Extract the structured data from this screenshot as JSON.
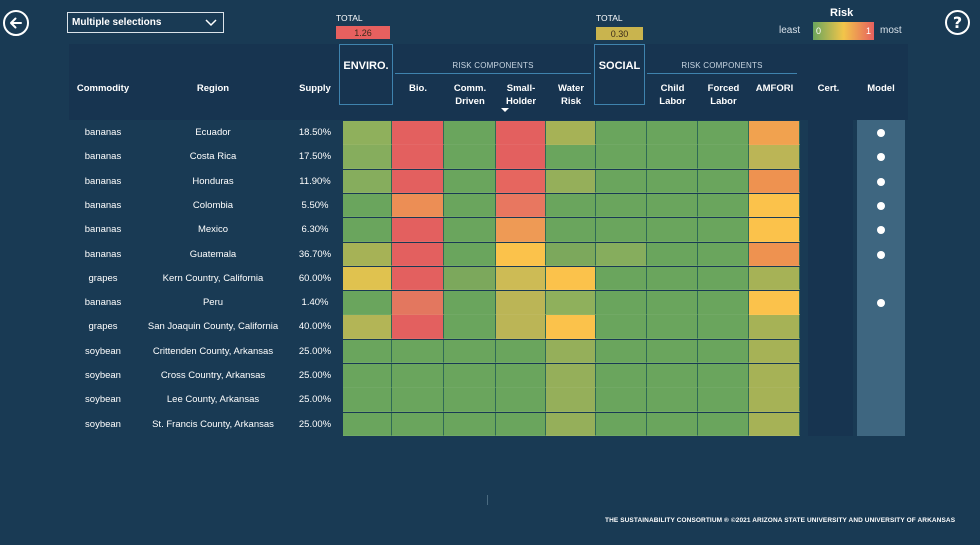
{
  "dropdown": {
    "value": "Multiple selections"
  },
  "totals": {
    "env": {
      "label": "TOTAL",
      "value": "1.26",
      "color": "#e6605f"
    },
    "social": {
      "label": "TOTAL",
      "value": "0.30",
      "color": "#c9b44e"
    }
  },
  "legend": {
    "title": "Risk",
    "least": "least",
    "most": "most",
    "min": "0",
    "max": "1"
  },
  "header": {
    "commodity": "Commodity",
    "region": "Region",
    "supply": "Supply",
    "enviro": "ENVIRO.",
    "social": "SOCIAL",
    "risk_components_env": "RISK COMPONENTS",
    "risk_components_social": "RISK COMPONENTS",
    "bio": "Bio.",
    "comm_driven_1": "Comm.",
    "comm_driven_2": "Driven",
    "smallholder_1": "Small-",
    "smallholder_2": "Holder",
    "water_1": "Water",
    "water_2": "Risk",
    "child_1": "Child",
    "child_2": "Labor",
    "forced_1": "Forced",
    "forced_2": "Labor",
    "amfori": "AMFORI",
    "cert": "Cert.",
    "model": "Model"
  },
  "rows": [
    {
      "commodity": "bananas",
      "region": "Ecuador",
      "supply": "18.50%",
      "model": true
    },
    {
      "commodity": "bananas",
      "region": "Costa Rica",
      "supply": "17.50%",
      "model": true
    },
    {
      "commodity": "bananas",
      "region": "Honduras",
      "supply": "11.90%",
      "model": true
    },
    {
      "commodity": "bananas",
      "region": "Colombia",
      "supply": "5.50%",
      "model": true
    },
    {
      "commodity": "bananas",
      "region": "Mexico",
      "supply": "6.30%",
      "model": true
    },
    {
      "commodity": "bananas",
      "region": "Guatemala",
      "supply": "36.70%",
      "model": true
    },
    {
      "commodity": "grapes",
      "region": "Kern Country, California",
      "supply": "60.00%",
      "model": false
    },
    {
      "commodity": "bananas",
      "region": "Peru",
      "supply": "1.40%",
      "model": true
    },
    {
      "commodity": "grapes",
      "region": "San Joaquin County, California",
      "supply": "40.00%",
      "model": false
    },
    {
      "commodity": "soybean",
      "region": "Crittenden County, Arkansas",
      "supply": "25.00%",
      "model": false
    },
    {
      "commodity": "soybean",
      "region": "Cross Country, Arkansas",
      "supply": "25.00%",
      "model": false
    },
    {
      "commodity": "soybean",
      "region": "Lee County, Arkansas",
      "supply": "25.00%",
      "model": false
    },
    {
      "commodity": "soybean",
      "region": "St. Francis County, Arkansas",
      "supply": "25.00%",
      "model": false
    }
  ],
  "heat_colors": [
    [
      "#8fb05c",
      "#e3605f",
      "#6aa55d",
      "#e3605f",
      "#a6b256",
      "#6aa55d",
      "#6aa55d",
      "#6aa55d",
      "#f1a24f"
    ],
    [
      "#86ad5d",
      "#e3605f",
      "#6aa55d",
      "#e3605f",
      "#6aa55d",
      "#6aa55d",
      "#6aa55d",
      "#6aa55d",
      "#bbb556"
    ],
    [
      "#86ad5d",
      "#e3605f",
      "#6aa55d",
      "#e6665f",
      "#95af5a",
      "#6aa55d",
      "#6aa55d",
      "#6aa55d",
      "#ee9250"
    ],
    [
      "#6aa55d",
      "#ec8e55",
      "#6aa55d",
      "#e87760",
      "#6aa55d",
      "#6aa55d",
      "#6aa55d",
      "#6aa55d",
      "#fbc24b"
    ],
    [
      "#6aa55d",
      "#e3605f",
      "#6aa55d",
      "#ee9a55",
      "#6aa55d",
      "#6aa55d",
      "#6aa55d",
      "#6aa55d",
      "#fbc24b"
    ],
    [
      "#a6b256",
      "#e3605f",
      "#6aa55d",
      "#fbc24b",
      "#7ca85c",
      "#86ad5d",
      "#6aa55d",
      "#6aa55d",
      "#ee9250"
    ],
    [
      "#e0c24f",
      "#e3605f",
      "#7ca85c",
      "#cdbb55",
      "#fbc24b",
      "#6aa55d",
      "#6aa55d",
      "#6aa55d",
      "#a6b256"
    ],
    [
      "#6aa55d",
      "#e3775f",
      "#6aa55d",
      "#bbb556",
      "#8fb05c",
      "#6aa55d",
      "#6aa55d",
      "#6aa55d",
      "#fbc24b"
    ],
    [
      "#b3b556",
      "#e3605f",
      "#6aa55d",
      "#bbb556",
      "#fbc24b",
      "#6aa55d",
      "#6aa55d",
      "#6aa55d",
      "#a6b256"
    ],
    [
      "#6aa55d",
      "#6aa55d",
      "#6aa55d",
      "#6aa55d",
      "#95af5a",
      "#6aa55d",
      "#6aa55d",
      "#6aa55d",
      "#a6b256"
    ],
    [
      "#6aa55d",
      "#6aa55d",
      "#6aa55d",
      "#6aa55d",
      "#95af5a",
      "#6aa55d",
      "#6aa55d",
      "#6aa55d",
      "#a6b256"
    ],
    [
      "#6aa55d",
      "#6aa55d",
      "#6aa55d",
      "#6aa55d",
      "#95af5a",
      "#6aa55d",
      "#6aa55d",
      "#6aa55d",
      "#a6b256"
    ],
    [
      "#6aa55d",
      "#6aa55d",
      "#6aa55d",
      "#6aa55d",
      "#95af5a",
      "#6aa55d",
      "#6aa55d",
      "#6aa55d",
      "#a6b256"
    ]
  ],
  "footer": "THE SUSTAINABILITY CONSORTIUM ®  ©2021 ARIZONA STATE UNIVERSITY AND UNIVERSITY OF ARKANSAS",
  "icons": {
    "back": "back-arrow-icon",
    "help": "help-icon",
    "dropdown": "chevron-down-icon"
  }
}
